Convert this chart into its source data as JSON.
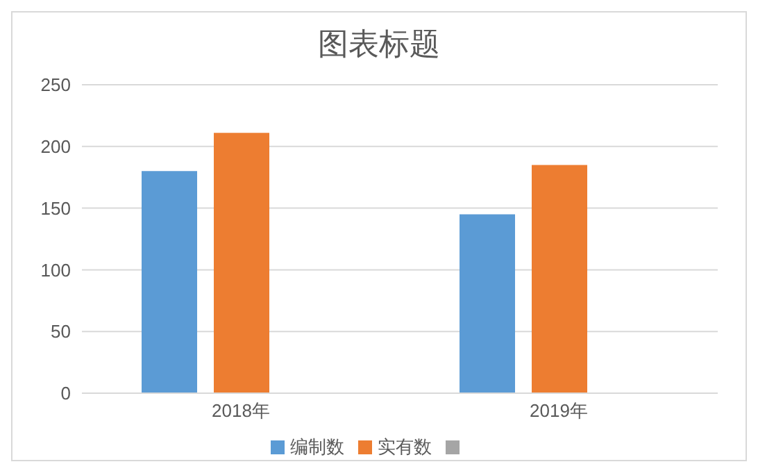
{
  "chart_data": {
    "type": "bar",
    "title": "图表标题",
    "categories": [
      "2018年",
      "2019年"
    ],
    "series": [
      {
        "name": "编制数",
        "color": "#5b9bd5",
        "values": [
          180,
          145
        ]
      },
      {
        "name": "实有数",
        "color": "#ed7d31",
        "values": [
          211,
          185
        ]
      },
      {
        "color": "#a5a5a5",
        "values": [
          null,
          null
        ]
      }
    ],
    "ylim": [
      0,
      250
    ],
    "yticks": [
      0,
      50,
      100,
      150,
      200,
      250
    ],
    "grid": "y",
    "legend": "bottom"
  }
}
